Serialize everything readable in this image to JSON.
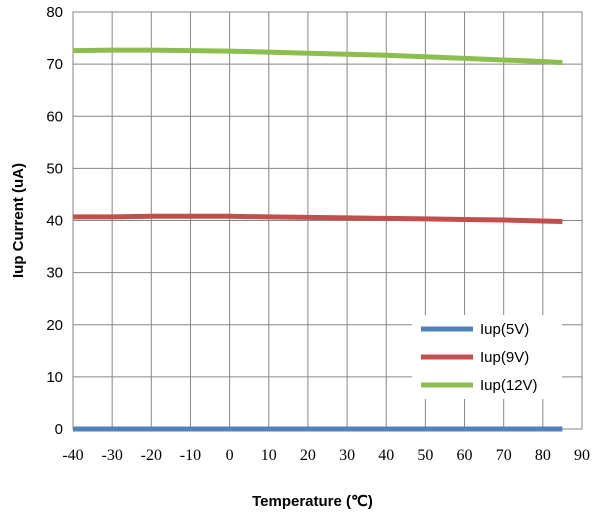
{
  "chart_data": {
    "type": "line",
    "title": "",
    "xlabel": "Temperature (℃)",
    "ylabel": "Iup Current (uA)",
    "xlim": [
      -40,
      90
    ],
    "ylim": [
      0,
      80
    ],
    "xticks": [
      -40,
      -30,
      -20,
      -10,
      0,
      10,
      20,
      30,
      40,
      50,
      60,
      70,
      80,
      90
    ],
    "yticks": [
      0,
      10,
      20,
      30,
      40,
      50,
      60,
      70,
      80
    ],
    "grid": true,
    "legend_position": "bottom-right",
    "x": [
      -40,
      -30,
      -20,
      -10,
      0,
      10,
      20,
      30,
      40,
      50,
      60,
      70,
      80,
      85
    ],
    "series": [
      {
        "name": "Iup(5V)",
        "color": "#4f81bd",
        "values": [
          0,
          0,
          0,
          0,
          0,
          0,
          0,
          0,
          0,
          0,
          0,
          0,
          0,
          0
        ]
      },
      {
        "name": "Iup(9V)",
        "color": "#c0504d",
        "values": [
          40.7,
          40.7,
          40.8,
          40.8,
          40.8,
          40.7,
          40.6,
          40.5,
          40.4,
          40.3,
          40.2,
          40.1,
          39.9,
          39.8
        ]
      },
      {
        "name": "Iup(12V)",
        "color": "#8dbd4f",
        "values": [
          72.6,
          72.7,
          72.7,
          72.6,
          72.5,
          72.3,
          72.1,
          71.9,
          71.7,
          71.4,
          71.1,
          70.8,
          70.5,
          70.3
        ]
      }
    ]
  }
}
